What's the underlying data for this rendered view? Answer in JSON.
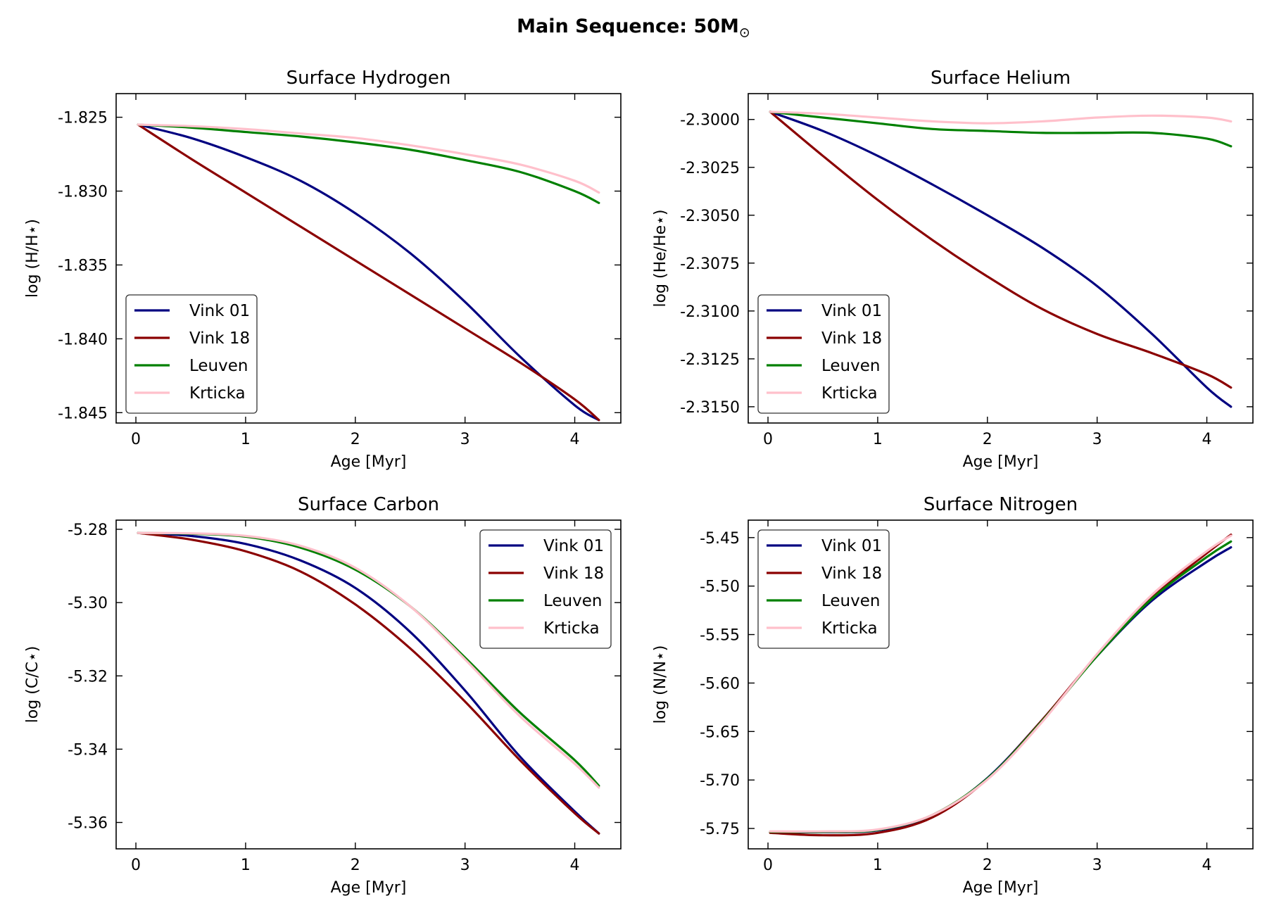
{
  "figure": {
    "title_text": "Main Sequence: 50M",
    "title_symbol": "⊙"
  },
  "chart_data": [
    {
      "type": "line",
      "title": "Surface Hydrogen",
      "xlabel": "Age [Myr]",
      "ylabel": "log (H/H⋆)",
      "xlim": [
        -0.18,
        4.42
      ],
      "ylim": [
        -1.8457,
        -1.8234
      ],
      "xticks": [
        0,
        1,
        2,
        3,
        4
      ],
      "yticks": [
        -1.825,
        -1.83,
        -1.835,
        -1.84,
        -1.845
      ],
      "ytick_labels": [
        "-1.825",
        "-1.830",
        "-1.835",
        "-1.840",
        "-1.845"
      ],
      "grid": false,
      "legend_position": "lower-left",
      "x": [
        0.02,
        0.5,
        1.0,
        1.5,
        2.0,
        2.5,
        3.0,
        3.5,
        4.0,
        4.22
      ],
      "series": [
        {
          "name": "Vink 01",
          "color": "#000080",
          "values": [
            -1.8255,
            -1.8264,
            -1.8277,
            -1.8293,
            -1.8315,
            -1.8342,
            -1.8375,
            -1.8412,
            -1.8445,
            -1.8455
          ]
        },
        {
          "name": "Vink 18",
          "color": "#8b0000",
          "values": [
            -1.8255,
            -1.8278,
            -1.8301,
            -1.8324,
            -1.8347,
            -1.837,
            -1.8393,
            -1.8416,
            -1.8441,
            -1.8455
          ]
        },
        {
          "name": "Leuven",
          "color": "#008000",
          "values": [
            -1.8255,
            -1.8257,
            -1.826,
            -1.8263,
            -1.8267,
            -1.8272,
            -1.8279,
            -1.8287,
            -1.83,
            -1.8308
          ]
        },
        {
          "name": "Krticka",
          "color": "#ffc0cb",
          "values": [
            -1.8255,
            -1.8256,
            -1.8258,
            -1.8261,
            -1.8264,
            -1.8269,
            -1.8275,
            -1.8282,
            -1.8293,
            -1.8301
          ]
        }
      ]
    },
    {
      "type": "line",
      "title": "Surface Helium",
      "xlabel": "Age [Myr]",
      "ylabel": "log (He/He⋆)",
      "xlim": [
        -0.18,
        4.42
      ],
      "ylim": [
        -2.31585,
        -2.29865
      ],
      "xticks": [
        0,
        1,
        2,
        3,
        4
      ],
      "yticks": [
        -2.3,
        -2.3025,
        -2.305,
        -2.3075,
        -2.31,
        -2.3125,
        -2.315
      ],
      "ytick_labels": [
        "-2.3000",
        "-2.3025",
        "-2.3050",
        "-2.3075",
        "-2.3100",
        "-2.3125",
        "-2.3150"
      ],
      "grid": false,
      "legend_position": "lower-left",
      "x": [
        0.02,
        0.5,
        1.0,
        1.5,
        2.0,
        2.5,
        3.0,
        3.5,
        4.0,
        4.22
      ],
      "series": [
        {
          "name": "Vink 01",
          "color": "#000080",
          "values": [
            -2.2996,
            -2.3006,
            -2.3019,
            -2.3034,
            -2.305,
            -2.3067,
            -2.3087,
            -2.3112,
            -2.314,
            -2.315
          ]
        },
        {
          "name": "Vink 18",
          "color": "#8b0000",
          "values": [
            -2.2996,
            -2.3019,
            -2.3042,
            -2.3063,
            -2.3082,
            -2.3099,
            -2.3112,
            -2.3122,
            -2.3133,
            -2.314
          ]
        },
        {
          "name": "Leuven",
          "color": "#008000",
          "values": [
            -2.2996,
            -2.2999,
            -2.3002,
            -2.3005,
            -2.3006,
            -2.3007,
            -2.3007,
            -2.3007,
            -2.301,
            -2.3014
          ]
        },
        {
          "name": "Krticka",
          "color": "#ffc0cb",
          "values": [
            -2.2996,
            -2.2997,
            -2.2999,
            -2.3001,
            -2.3002,
            -2.3001,
            -2.2999,
            -2.2998,
            -2.2999,
            -2.3001
          ]
        }
      ]
    },
    {
      "type": "line",
      "title": "Surface Carbon",
      "xlabel": "Age [Myr]",
      "ylabel": "log (C/C⋆)",
      "xlim": [
        -0.18,
        4.42
      ],
      "ylim": [
        -5.3672,
        -5.2775
      ],
      "xticks": [
        0,
        1,
        2,
        3,
        4
      ],
      "yticks": [
        -5.28,
        -5.3,
        -5.32,
        -5.34,
        -5.36
      ],
      "ytick_labels": [
        "-5.28",
        "-5.30",
        "-5.32",
        "-5.34",
        "-5.36"
      ],
      "grid": false,
      "legend_position": "upper-right",
      "x": [
        0.02,
        0.5,
        1.0,
        1.5,
        2.0,
        2.5,
        3.0,
        3.5,
        4.0,
        4.22
      ],
      "series": [
        {
          "name": "Vink 01",
          "color": "#000080",
          "values": [
            -5.281,
            -5.2818,
            -5.284,
            -5.2885,
            -5.296,
            -5.308,
            -5.324,
            -5.342,
            -5.357,
            -5.363
          ]
        },
        {
          "name": "Vink 18",
          "color": "#8b0000",
          "values": [
            -5.281,
            -5.2828,
            -5.286,
            -5.2915,
            -5.3005,
            -5.3125,
            -5.327,
            -5.343,
            -5.3575,
            -5.363
          ]
        },
        {
          "name": "Leuven",
          "color": "#008000",
          "values": [
            -5.281,
            -5.2812,
            -5.282,
            -5.285,
            -5.291,
            -5.301,
            -5.315,
            -5.33,
            -5.343,
            -5.35
          ]
        },
        {
          "name": "Krticka",
          "color": "#ffc0cb",
          "values": [
            -5.281,
            -5.2811,
            -5.2818,
            -5.2845,
            -5.2905,
            -5.301,
            -5.3155,
            -5.331,
            -5.344,
            -5.3505
          ]
        }
      ]
    },
    {
      "type": "line",
      "title": "Surface Nitrogen",
      "xlabel": "Age [Myr]",
      "ylabel": "log (N/N⋆)",
      "xlim": [
        -0.18,
        4.42
      ],
      "ylim": [
        -5.771,
        -5.432
      ],
      "xticks": [
        0,
        1,
        2,
        3,
        4
      ],
      "yticks": [
        -5.45,
        -5.5,
        -5.55,
        -5.6,
        -5.65,
        -5.7,
        -5.75
      ],
      "ytick_labels": [
        "-5.45",
        "-5.50",
        "-5.55",
        "-5.60",
        "-5.65",
        "-5.70",
        "-5.75"
      ],
      "grid": false,
      "legend_position": "upper-left",
      "x": [
        0.02,
        0.5,
        1.0,
        1.5,
        2.0,
        2.5,
        3.0,
        3.5,
        4.0,
        4.22
      ],
      "series": [
        {
          "name": "Vink 01",
          "color": "#000080",
          "values": [
            -5.7535,
            -5.7538,
            -5.752,
            -5.737,
            -5.698,
            -5.638,
            -5.572,
            -5.515,
            -5.475,
            -5.46
          ]
        },
        {
          "name": "Vink 18",
          "color": "#8b0000",
          "values": [
            -5.7545,
            -5.757,
            -5.7545,
            -5.7385,
            -5.699,
            -5.638,
            -5.571,
            -5.512,
            -5.466,
            -5.447
          ]
        },
        {
          "name": "Leuven",
          "color": "#008000",
          "values": [
            -5.7535,
            -5.7535,
            -5.7515,
            -5.736,
            -5.6985,
            -5.639,
            -5.572,
            -5.513,
            -5.47,
            -5.454
          ]
        },
        {
          "name": "Krticka",
          "color": "#ffc0cb",
          "values": [
            -5.753,
            -5.753,
            -5.751,
            -5.736,
            -5.6995,
            -5.64,
            -5.57,
            -5.509,
            -5.464,
            -5.448
          ]
        }
      ]
    }
  ]
}
